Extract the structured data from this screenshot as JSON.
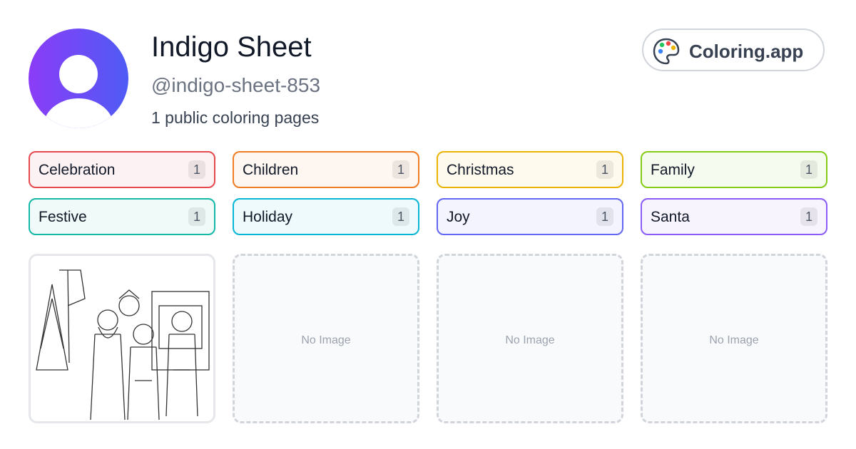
{
  "profile": {
    "name": "Indigo Sheet",
    "handle": "@indigo-sheet-853",
    "summary": "1 public coloring pages"
  },
  "brand": {
    "label": "Coloring.app"
  },
  "tags": [
    {
      "label": "Celebration",
      "count": "1",
      "color": "#e5484d"
    },
    {
      "label": "Children",
      "count": "1",
      "color": "#f07c24"
    },
    {
      "label": "Christmas",
      "count": "1",
      "color": "#eab308"
    },
    {
      "label": "Family",
      "count": "1",
      "color": "#84cc16"
    },
    {
      "label": "Festive",
      "count": "1",
      "color": "#14b8a6"
    },
    {
      "label": "Holiday",
      "count": "1",
      "color": "#06b6d4"
    },
    {
      "label": "Joy",
      "count": "1",
      "color": "#6366f1"
    },
    {
      "label": "Santa",
      "count": "1",
      "color": "#8b5cf6"
    }
  ],
  "thumbnails": [
    null,
    "No Image",
    "No Image",
    "No Image"
  ]
}
